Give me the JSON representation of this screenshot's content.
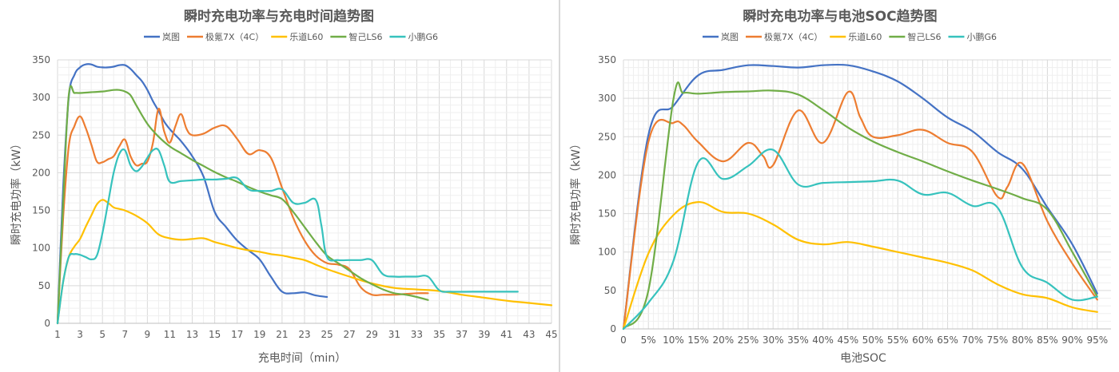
{
  "chart_data": [
    {
      "type": "line",
      "title": "瞬时充电功率与充电时间趋势图",
      "xlabel": "充电时间（min）",
      "ylabel": "瞬时充电功率（kW）",
      "ylim": [
        0,
        350
      ],
      "y_ticks": [
        "0",
        "50",
        "100",
        "150",
        "200",
        "250",
        "300",
        "350"
      ],
      "xlim": [
        1,
        45
      ],
      "x_ticks": [
        "1",
        "3",
        "5",
        "7",
        "9",
        "11",
        "13",
        "15",
        "17",
        "19",
        "21",
        "23",
        "25",
        "27",
        "29",
        "31",
        "33",
        "35",
        "37",
        "39",
        "41",
        "43",
        "45"
      ],
      "grid": true,
      "legend_position": "top",
      "series": [
        {
          "name": "岚图",
          "color": "#4472c4",
          "x": [
            1,
            1.5,
            2,
            2.5,
            3,
            3.5,
            4,
            4.5,
            5,
            5.5,
            6,
            6.5,
            7,
            7.5,
            8,
            8.5,
            9,
            9.5,
            10,
            10.5,
            11,
            11.5,
            12,
            13,
            14,
            15,
            16,
            17,
            18,
            19,
            20,
            21,
            22,
            23,
            24,
            25
          ],
          "y": [
            0,
            180,
            300,
            330,
            340,
            344,
            344,
            341,
            340,
            340,
            341,
            343,
            343,
            338,
            330,
            322,
            310,
            295,
            282,
            268,
            258,
            250,
            242,
            222,
            195,
            148,
            128,
            110,
            97,
            85,
            62,
            42,
            40,
            41,
            37,
            35
          ]
        },
        {
          "name": "极氪7X（4C）",
          "color": "#ed7d31",
          "x": [
            1,
            1.5,
            2,
            2.5,
            3,
            3.5,
            4,
            4.5,
            5,
            5.5,
            6,
            6.5,
            7,
            7.5,
            8,
            8.5,
            9,
            9.5,
            10,
            10.5,
            11,
            11.5,
            12,
            12.5,
            13,
            14,
            15,
            16,
            17,
            18,
            19,
            20,
            21,
            22,
            23,
            24,
            25,
            26,
            27,
            28,
            29,
            30,
            31,
            32,
            33,
            34
          ],
          "y": [
            0,
            140,
            235,
            262,
            275,
            260,
            238,
            215,
            214,
            218,
            222,
            235,
            244,
            222,
            210,
            212,
            215,
            240,
            285,
            255,
            240,
            262,
            278,
            258,
            250,
            252,
            260,
            262,
            245,
            225,
            230,
            220,
            180,
            140,
            110,
            90,
            80,
            78,
            72,
            48,
            38,
            38,
            38,
            39,
            40,
            40
          ]
        },
        {
          "name": "乐道L60",
          "color": "#ffc000",
          "x": [
            1,
            1.5,
            2,
            2.5,
            3,
            3.5,
            4,
            4.5,
            5,
            5.5,
            6,
            6.5,
            7,
            8,
            9,
            10,
            11,
            12,
            13,
            14,
            15,
            16,
            17,
            18,
            19,
            20,
            21,
            22,
            23,
            24,
            25,
            27,
            29,
            31,
            33,
            35,
            37,
            39,
            41,
            43,
            45
          ],
          "y": [
            0,
            55,
            88,
            102,
            112,
            128,
            143,
            158,
            164,
            160,
            154,
            152,
            150,
            143,
            133,
            118,
            113,
            111,
            112,
            113,
            108,
            104,
            100,
            97,
            95,
            92,
            90,
            87,
            84,
            78,
            72,
            62,
            53,
            47,
            45,
            43,
            38,
            34,
            30,
            27,
            24
          ]
        },
        {
          "name": "智己LS6",
          "color": "#70ad47",
          "x": [
            1,
            1.5,
            2,
            2.5,
            3,
            4,
            5,
            5.5,
            6,
            6.5,
            7,
            7.5,
            8,
            9,
            10,
            11,
            12,
            13,
            14,
            15,
            16,
            17,
            18,
            19,
            20,
            21,
            22,
            23,
            24,
            25,
            26,
            27,
            28,
            29,
            30,
            31,
            32,
            33,
            34
          ],
          "y": [
            0,
            160,
            303,
            306,
            306,
            307,
            308,
            309,
            310,
            310,
            308,
            303,
            290,
            265,
            248,
            235,
            226,
            217,
            209,
            201,
            194,
            188,
            181,
            175,
            170,
            165,
            148,
            128,
            108,
            90,
            80,
            70,
            60,
            52,
            45,
            40,
            38,
            35,
            31
          ]
        },
        {
          "name": "小鹏G6",
          "color": "#36c2bd",
          "x": [
            1,
            1.5,
            2,
            2.5,
            3,
            3.5,
            4,
            4.5,
            5,
            5.5,
            6,
            6.5,
            7,
            7.5,
            8,
            8.5,
            9,
            9.5,
            10,
            10.5,
            11,
            12,
            13,
            14,
            15,
            16,
            17,
            18,
            19,
            20,
            21,
            22,
            23,
            24,
            24.5,
            25,
            26,
            27,
            28,
            29,
            30,
            31,
            32,
            33,
            34,
            35,
            36,
            38,
            40,
            42
          ],
          "y": [
            0,
            55,
            88,
            92,
            91,
            88,
            85,
            90,
            120,
            160,
            200,
            225,
            230,
            210,
            202,
            208,
            220,
            230,
            230,
            210,
            188,
            189,
            190,
            191,
            191,
            192,
            193,
            178,
            176,
            176,
            178,
            160,
            160,
            164,
            130,
            88,
            84,
            84,
            84,
            84,
            65,
            62,
            62,
            62,
            62,
            44,
            42,
            42,
            42,
            42
          ]
        }
      ]
    },
    {
      "type": "line",
      "title": "瞬时充电功率与电池SOC趋势图",
      "xlabel": "电池SOC",
      "ylabel": "瞬时充电功率（kW）",
      "ylim": [
        0,
        350
      ],
      "y_ticks": [
        "0",
        "50",
        "100",
        "150",
        "200",
        "250",
        "300",
        "350"
      ],
      "xlim": [
        0,
        97
      ],
      "x_ticks": [
        "0",
        "5%",
        "10%",
        "15%",
        "20%",
        "25%",
        "30%",
        "35%",
        "40%",
        "45%",
        "50%",
        "55%",
        "60%",
        "65%",
        "70%",
        "75%",
        "80%",
        "85%",
        "90%",
        "95%"
      ],
      "grid": true,
      "legend_position": "top",
      "series": [
        {
          "name": "岚图",
          "color": "#4472c4",
          "x": [
            0,
            5,
            10,
            15,
            20,
            25,
            30,
            35,
            40,
            45,
            50,
            55,
            60,
            65,
            70,
            75,
            80,
            85,
            90,
            95
          ],
          "y": [
            0,
            252,
            290,
            330,
            337,
            343,
            342,
            340,
            343,
            343,
            335,
            322,
            300,
            275,
            257,
            230,
            208,
            158,
            110,
            46
          ]
        },
        {
          "name": "极氪7X（4C）",
          "color": "#ed7d31",
          "x": [
            0,
            5,
            10,
            12,
            15,
            20,
            25,
            28,
            30,
            35,
            40,
            45,
            47.5,
            50,
            55,
            60,
            65,
            70,
            75,
            77,
            80,
            85,
            90,
            95
          ],
          "y": [
            0,
            243,
            268,
            265,
            243,
            218,
            242,
            225,
            213,
            284,
            242,
            308,
            275,
            250,
            252,
            259,
            242,
            230,
            172,
            185,
            215,
            140,
            85,
            38
          ]
        },
        {
          "name": "乐道L60",
          "color": "#ffc000",
          "x": [
            0,
            5,
            10,
            15,
            20,
            25,
            30,
            35,
            40,
            45,
            50,
            55,
            60,
            65,
            70,
            75,
            80,
            85,
            90,
            95
          ],
          "y": [
            0,
            98,
            148,
            165,
            152,
            150,
            136,
            116,
            110,
            113,
            107,
            100,
            93,
            86,
            76,
            58,
            45,
            40,
            28,
            22
          ]
        },
        {
          "name": "智己LS6",
          "color": "#70ad47",
          "x": [
            0,
            5,
            10,
            12,
            15,
            20,
            25,
            30,
            35,
            40,
            45,
            50,
            55,
            60,
            65,
            70,
            75,
            80,
            85,
            90,
            95
          ],
          "y": [
            0,
            50,
            298,
            307,
            306,
            308,
            309,
            310,
            305,
            285,
            262,
            244,
            230,
            218,
            205,
            193,
            182,
            170,
            155,
            100,
            42
          ]
        },
        {
          "name": "小鹏G6",
          "color": "#36c2bd",
          "x": [
            0,
            5,
            10,
            15,
            20,
            25,
            30,
            35,
            40,
            45,
            50,
            55,
            60,
            65,
            70,
            75,
            80,
            85,
            90,
            95
          ],
          "y": [
            0,
            34,
            88,
            217,
            195,
            212,
            233,
            188,
            190,
            191,
            192,
            193,
            175,
            177,
            160,
            158,
            80,
            60,
            38,
            42
          ]
        }
      ]
    }
  ]
}
